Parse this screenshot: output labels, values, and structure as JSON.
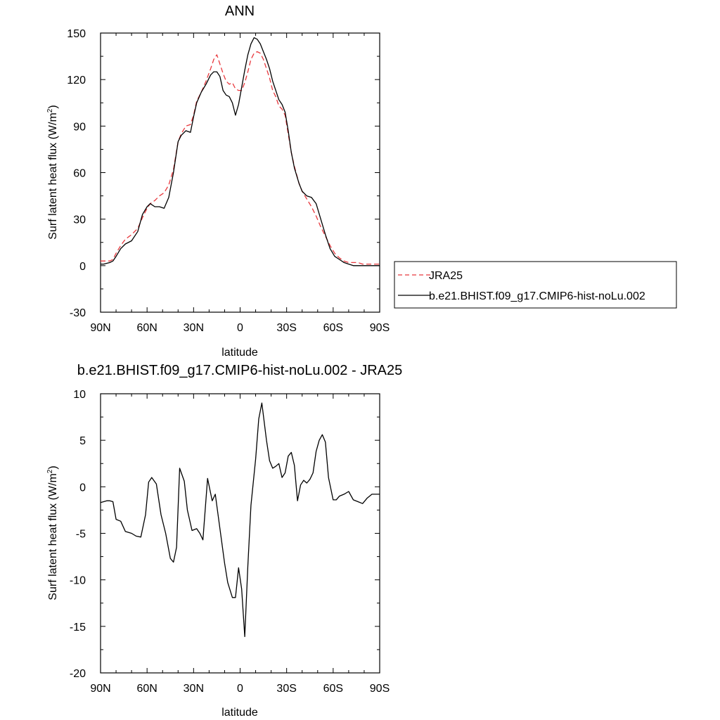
{
  "chart_data": [
    {
      "type": "line",
      "title": "ANN",
      "xlabel": "latitude",
      "ylabel": "Surf latent heat flux (W/m",
      "ylabel_sup": "2",
      "ylabel_close": ")",
      "xlim": [
        90,
        -90
      ],
      "ylim": [
        -30,
        150
      ],
      "xticks": [
        90,
        60,
        30,
        0,
        -30,
        -60,
        -90
      ],
      "xticklabels": [
        "90N",
        "60N",
        "30N",
        "0",
        "30S",
        "60S",
        "90S"
      ],
      "yticks": [
        -30,
        0,
        30,
        60,
        90,
        120,
        150
      ],
      "yticklabels": [
        "-30",
        "0",
        "30",
        "60",
        "90",
        "120",
        "150"
      ],
      "grid": false,
      "legend": "right",
      "colors": {
        "JRA25": "#e8383d",
        "model": "#000000"
      },
      "series": [
        {
          "name": "JRA25",
          "style": "dashed",
          "x": [
            90,
            88,
            84,
            82,
            80,
            77,
            74,
            70,
            66,
            63,
            60,
            58,
            55,
            52,
            49,
            46,
            43,
            40,
            38,
            35,
            32,
            30,
            28,
            25,
            22,
            19,
            17,
            15,
            13,
            11,
            9,
            7,
            5,
            3,
            1,
            -1,
            -3,
            -5,
            -7,
            -9,
            -11,
            -13,
            -15,
            -17,
            -19,
            -21,
            -23,
            -25,
            -27,
            -29,
            -31,
            -33,
            -35,
            -38,
            -40,
            -43,
            -46,
            -49,
            -52,
            -55,
            -58,
            -61,
            -64,
            -67,
            -70,
            -73,
            -76,
            -79,
            -82,
            -85,
            -88,
            -90
          ],
          "y": [
            3,
            3,
            3,
            4,
            8,
            13,
            17,
            20,
            24,
            31,
            37,
            40,
            42,
            45,
            47,
            52,
            62,
            80,
            85,
            90,
            91,
            97,
            106,
            112,
            119,
            127,
            133,
            136,
            130,
            124,
            119,
            117,
            118,
            114,
            113,
            113,
            118,
            125,
            133,
            137,
            138,
            137,
            133,
            127,
            121,
            113,
            109,
            103,
            101,
            97,
            85,
            73,
            64,
            53,
            48,
            43,
            38,
            32,
            25,
            19,
            13,
            8,
            5,
            3,
            2,
            2,
            2,
            1,
            1,
            1,
            1,
            1
          ]
        },
        {
          "name": "b.e21.BHIST.f09_g17.CMIP6-hist-noLu.002",
          "style": "solid",
          "x": [
            90,
            88,
            84,
            82,
            80,
            77,
            74,
            70,
            66,
            63,
            60,
            58,
            55,
            52,
            49,
            46,
            43,
            40,
            38,
            35,
            32,
            30,
            28,
            25,
            22,
            19,
            17,
            15,
            13,
            11,
            9,
            7,
            5,
            3,
            1,
            -1,
            -3,
            -5,
            -7,
            -9,
            -11,
            -13,
            -15,
            -17,
            -19,
            -21,
            -23,
            -25,
            -27,
            -29,
            -31,
            -33,
            -35,
            -38,
            -40,
            -43,
            -46,
            -49,
            -52,
            -55,
            -58,
            -61,
            -64,
            -67,
            -70,
            -73,
            -76,
            -79,
            -82,
            -85,
            -88,
            -90
          ],
          "y": [
            1,
            1,
            2,
            3,
            6,
            11,
            14,
            16,
            22,
            33,
            38,
            40,
            38,
            38,
            37,
            44,
            60,
            80,
            84,
            87,
            86,
            96,
            105,
            112,
            117,
            123,
            125,
            125,
            122,
            113,
            110,
            109,
            105,
            97,
            104,
            115,
            126,
            136,
            143,
            147,
            146,
            143,
            138,
            133,
            127,
            119,
            113,
            107,
            104,
            99,
            87,
            73,
            63,
            53,
            48,
            45,
            44,
            40,
            30,
            20,
            11,
            6,
            4,
            2,
            1,
            0,
            0,
            0,
            0,
            0,
            0,
            0
          ]
        }
      ]
    },
    {
      "type": "line",
      "title": "b.e21.BHIST.f09_g17.CMIP6-hist-noLu.002 - JRA25",
      "xlabel": "latitude",
      "ylabel": "Surf latent heat flux (W/m",
      "ylabel_sup": "2",
      "ylabel_close": ")",
      "xlim": [
        90,
        -90
      ],
      "ylim": [
        -20,
        10
      ],
      "xticks": [
        90,
        60,
        30,
        0,
        -30,
        -60,
        -90
      ],
      "xticklabels": [
        "90N",
        "60N",
        "30N",
        "0",
        "30S",
        "60S",
        "90S"
      ],
      "yticks": [
        -20,
        -15,
        -10,
        -5,
        0,
        5,
        10
      ],
      "yticklabels": [
        "-20",
        "-15",
        "-10",
        "-5",
        "0",
        "5",
        "10"
      ],
      "grid": false,
      "colors": {
        "difference": "#000000"
      },
      "series": [
        {
          "style": "solid",
          "x": [
            90,
            86,
            84,
            82,
            80,
            77,
            74,
            70,
            67,
            64,
            61,
            59,
            57,
            54,
            51,
            48,
            45,
            43,
            41,
            39,
            36,
            34,
            31,
            28,
            26,
            24,
            21,
            18,
            16,
            13,
            10,
            8,
            5,
            3,
            1,
            -1,
            -3,
            -5,
            -7,
            -10,
            -12,
            -14,
            -17,
            -19,
            -21,
            -23,
            -25,
            -27,
            -29,
            -31,
            -33,
            -35,
            -37,
            -39,
            -41,
            -43,
            -45,
            -47,
            -49,
            -51,
            -53,
            -55,
            -57,
            -60,
            -62,
            -64,
            -67,
            -70,
            -73,
            -76,
            -79,
            -82,
            -85,
            -88,
            -90
          ],
          "y": [
            -1.7,
            -1.5,
            -1.5,
            -1.6,
            -3.5,
            -3.7,
            -4.8,
            -5.0,
            -5.3,
            -5.4,
            -3.0,
            0.5,
            1.0,
            0.3,
            -3.0,
            -5.0,
            -7.7,
            -8.1,
            -6.5,
            2.0,
            0.6,
            -2.5,
            -4.7,
            -4.5,
            -5.0,
            -5.7,
            0.9,
            -1.5,
            -0.8,
            -4.5,
            -8.2,
            -10.3,
            -11.9,
            -11.9,
            -8.7,
            -11.0,
            -16.1,
            -8.5,
            -2.0,
            3.0,
            7.3,
            9.0,
            5.0,
            2.8,
            2.0,
            2.2,
            2.5,
            1.0,
            1.5,
            3.3,
            3.7,
            2.3,
            -1.5,
            0.2,
            0.7,
            0.4,
            0.8,
            1.5,
            3.8,
            5.0,
            5.6,
            4.8,
            1.0,
            -1.4,
            -1.4,
            -1.0,
            -0.8,
            -0.5,
            -1.4,
            -1.6,
            -1.8,
            -1.2,
            -0.8,
            -0.8,
            -0.8
          ]
        }
      ]
    }
  ]
}
